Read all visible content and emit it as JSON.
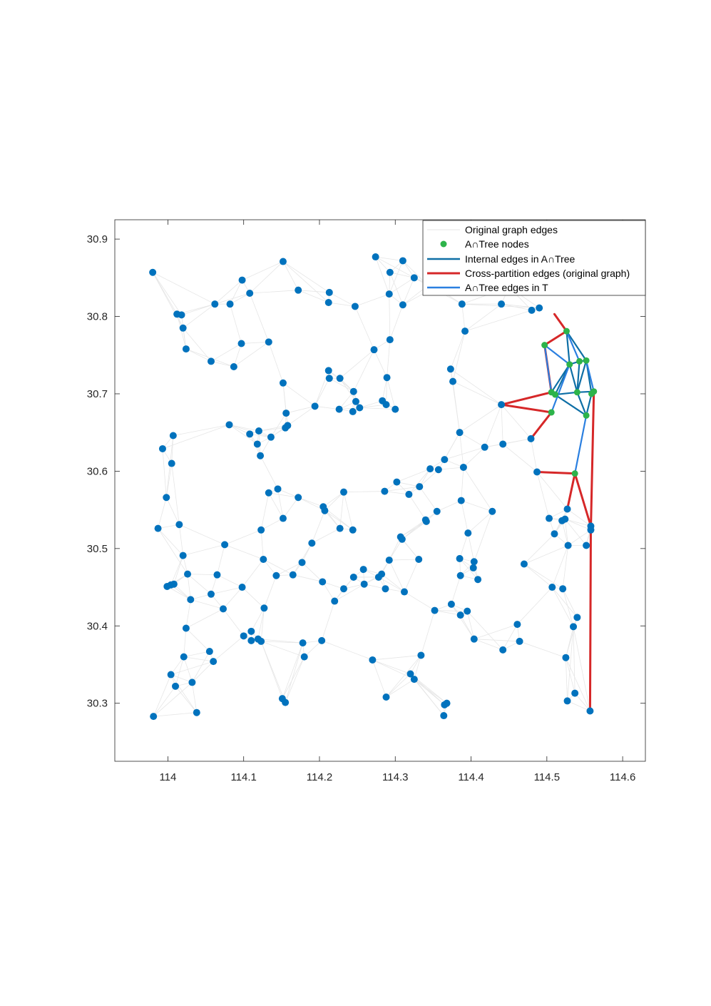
{
  "chart_data": {
    "type": "scatter",
    "xlim": [
      113.93,
      114.63
    ],
    "ylim": [
      30.225,
      30.925
    ],
    "xticks": [
      114,
      114.1,
      114.2,
      114.3,
      114.4,
      114.5,
      114.6
    ],
    "yticks": [
      30.3,
      30.4,
      30.5,
      30.6,
      30.7,
      30.8,
      30.9
    ],
    "xtick_labels": [
      "114",
      "114.1",
      "114.2",
      "114.3",
      "114.4",
      "114.5",
      "114.6"
    ],
    "ytick_labels": [
      "30.3",
      "30.4",
      "30.5",
      "30.6",
      "30.7",
      "30.8",
      "30.9"
    ],
    "legend": {
      "location": "top-right",
      "entries": [
        {
          "label": "Original graph edges",
          "color": "#e6e6e6",
          "style": "line"
        },
        {
          "label": "A∩Tree nodes",
          "color": "#2db34a",
          "style": "marker"
        },
        {
          "label": "Internal edges in A∩Tree",
          "color": "#0e6fa6",
          "style": "line"
        },
        {
          "label": "Cross-partition edges (original graph)",
          "color": "#d62728",
          "style": "line"
        },
        {
          "label": "A∩Tree edges in T",
          "color": "#2a7fe0",
          "style": "line"
        }
      ]
    },
    "colors": {
      "graph_node": "#0072bd",
      "original_edge": "#e6e6e6",
      "atree_node": "#2db34a",
      "internal_edge": "#0e6fa6",
      "cross_edge": "#d62728",
      "tree_edge": "#2a7fe0"
    },
    "nodes": [
      [
        113.98,
        30.857
      ],
      [
        114.012,
        30.803
      ],
      [
        114.018,
        30.802
      ],
      [
        114.02,
        30.785
      ],
      [
        114.024,
        30.758
      ],
      [
        114.062,
        30.816
      ],
      [
        114.082,
        30.816
      ],
      [
        114.098,
        30.847
      ],
      [
        114.108,
        30.83
      ],
      [
        114.152,
        30.871
      ],
      [
        114.172,
        30.834
      ],
      [
        114.097,
        30.765
      ],
      [
        114.133,
        30.767
      ],
      [
        114.057,
        30.742
      ],
      [
        114.087,
        30.735
      ],
      [
        114.152,
        30.714
      ],
      [
        114.213,
        30.831
      ],
      [
        114.212,
        30.818
      ],
      [
        114.247,
        30.813
      ],
      [
        114.274,
        30.877
      ],
      [
        114.293,
        30.857
      ],
      [
        114.292,
        30.829
      ],
      [
        114.31,
        30.872
      ],
      [
        114.31,
        30.815
      ],
      [
        114.325,
        30.85
      ],
      [
        114.343,
        30.84
      ],
      [
        114.353,
        30.838
      ],
      [
        114.388,
        30.816
      ],
      [
        114.44,
        30.816
      ],
      [
        114.45,
        30.838
      ],
      [
        114.48,
        30.808
      ],
      [
        114.49,
        30.811
      ],
      [
        114.392,
        30.781
      ],
      [
        114.293,
        30.77
      ],
      [
        114.272,
        30.757
      ],
      [
        114.212,
        30.73
      ],
      [
        114.213,
        30.72
      ],
      [
        114.227,
        30.72
      ],
      [
        114.245,
        30.703
      ],
      [
        114.248,
        30.69
      ],
      [
        114.253,
        30.682
      ],
      [
        114.244,
        30.677
      ],
      [
        114.226,
        30.68
      ],
      [
        114.194,
        30.684
      ],
      [
        114.156,
        30.675
      ],
      [
        114.158,
        30.659
      ],
      [
        114.155,
        30.656
      ],
      [
        114.289,
        30.721
      ],
      [
        114.283,
        30.691
      ],
      [
        114.288,
        30.686
      ],
      [
        114.3,
        30.68
      ],
      [
        114.373,
        30.732
      ],
      [
        114.376,
        30.716
      ],
      [
        114.081,
        30.66
      ],
      [
        114.108,
        30.648
      ],
      [
        114.12,
        30.652
      ],
      [
        114.136,
        30.644
      ],
      [
        114.118,
        30.635
      ],
      [
        114.122,
        30.62
      ],
      [
        114.007,
        30.646
      ],
      [
        113.993,
        30.629
      ],
      [
        114.005,
        30.61
      ],
      [
        114.385,
        30.65
      ],
      [
        114.365,
        30.615
      ],
      [
        114.346,
        30.603
      ],
      [
        114.357,
        30.602
      ],
      [
        114.39,
        30.605
      ],
      [
        114.418,
        30.631
      ],
      [
        114.442,
        30.635
      ],
      [
        114.479,
        30.642
      ],
      [
        114.44,
        30.686
      ],
      [
        113.998,
        30.566
      ],
      [
        114.133,
        30.572
      ],
      [
        114.145,
        30.577
      ],
      [
        114.172,
        30.566
      ],
      [
        114.232,
        30.573
      ],
      [
        114.286,
        30.574
      ],
      [
        114.302,
        30.586
      ],
      [
        114.318,
        30.57
      ],
      [
        114.332,
        30.58
      ],
      [
        114.205,
        30.554
      ],
      [
        114.207,
        30.549
      ],
      [
        114.355,
        30.548
      ],
      [
        114.387,
        30.562
      ],
      [
        114.428,
        30.548
      ],
      [
        114.487,
        30.599
      ],
      [
        114.503,
        30.539
      ],
      [
        114.52,
        30.536
      ],
      [
        114.524,
        30.538
      ],
      [
        114.527,
        30.551
      ],
      [
        113.987,
        30.526
      ],
      [
        114.015,
        30.531
      ],
      [
        114.123,
        30.524
      ],
      [
        114.152,
        30.539
      ],
      [
        114.227,
        30.526
      ],
      [
        114.244,
        30.524
      ],
      [
        114.307,
        30.515
      ],
      [
        114.309,
        30.512
      ],
      [
        114.34,
        30.537
      ],
      [
        114.341,
        30.535
      ],
      [
        114.396,
        30.52
      ],
      [
        114.51,
        30.519
      ],
      [
        114.528,
        30.504
      ],
      [
        114.552,
        30.504
      ],
      [
        114.02,
        30.491
      ],
      [
        114.075,
        30.505
      ],
      [
        114.126,
        30.486
      ],
      [
        114.177,
        30.482
      ],
      [
        114.19,
        30.507
      ],
      [
        114.245,
        30.463
      ],
      [
        114.258,
        30.473
      ],
      [
        114.278,
        30.463
      ],
      [
        114.282,
        30.467
      ],
      [
        114.292,
        30.485
      ],
      [
        114.331,
        30.486
      ],
      [
        114.385,
        30.487
      ],
      [
        114.404,
        30.483
      ],
      [
        114.403,
        30.475
      ],
      [
        114.47,
        30.48
      ],
      [
        113.999,
        30.451
      ],
      [
        114.004,
        30.453
      ],
      [
        114.008,
        30.454
      ],
      [
        114.026,
        30.467
      ],
      [
        114.065,
        30.466
      ],
      [
        114.03,
        30.434
      ],
      [
        114.057,
        30.441
      ],
      [
        114.098,
        30.45
      ],
      [
        114.143,
        30.465
      ],
      [
        114.165,
        30.466
      ],
      [
        114.204,
        30.457
      ],
      [
        114.232,
        30.448
      ],
      [
        114.259,
        30.454
      ],
      [
        114.287,
        30.448
      ],
      [
        114.312,
        30.444
      ],
      [
        114.386,
        30.465
      ],
      [
        114.409,
        30.46
      ],
      [
        114.507,
        30.45
      ],
      [
        114.521,
        30.448
      ],
      [
        114.22,
        30.432
      ],
      [
        114.073,
        30.422
      ],
      [
        114.127,
        30.423
      ],
      [
        114.352,
        30.42
      ],
      [
        114.374,
        30.428
      ],
      [
        114.386,
        30.414
      ],
      [
        114.395,
        30.419
      ],
      [
        114.54,
        30.411
      ],
      [
        114.024,
        30.397
      ],
      [
        114.461,
        30.402
      ],
      [
        114.535,
        30.399
      ],
      [
        114.11,
        30.393
      ],
      [
        114.1,
        30.387
      ],
      [
        114.11,
        30.381
      ],
      [
        114.119,
        30.383
      ],
      [
        114.123,
        30.38
      ],
      [
        114.178,
        30.378
      ],
      [
        114.203,
        30.381
      ],
      [
        114.404,
        30.383
      ],
      [
        114.464,
        30.38
      ],
      [
        114.442,
        30.369
      ],
      [
        114.055,
        30.367
      ],
      [
        114.06,
        30.354
      ],
      [
        114.021,
        30.36
      ],
      [
        114.18,
        30.36
      ],
      [
        114.27,
        30.356
      ],
      [
        114.334,
        30.362
      ],
      [
        114.525,
        30.359
      ],
      [
        114.004,
        30.337
      ],
      [
        114.01,
        30.322
      ],
      [
        114.032,
        30.327
      ],
      [
        114.32,
        30.338
      ],
      [
        114.325,
        30.331
      ],
      [
        114.151,
        30.306
      ],
      [
        114.155,
        30.301
      ],
      [
        114.288,
        30.308
      ],
      [
        114.537,
        30.313
      ],
      [
        113.981,
        30.283
      ],
      [
        114.038,
        30.288
      ],
      [
        114.364,
        30.284
      ],
      [
        114.365,
        30.298
      ],
      [
        114.368,
        30.3
      ],
      [
        114.527,
        30.303
      ],
      [
        114.557,
        30.29
      ],
      [
        114.558,
        30.524
      ],
      [
        114.558,
        30.529
      ]
    ],
    "atree_nodes": [
      [
        114.526,
        30.781
      ],
      [
        114.497,
        30.763
      ],
      [
        114.53,
        30.738
      ],
      [
        114.543,
        30.742
      ],
      [
        114.552,
        30.743
      ],
      [
        114.506,
        30.702
      ],
      [
        114.511,
        30.699
      ],
      [
        114.54,
        30.702
      ],
      [
        114.559,
        30.7
      ],
      [
        114.562,
        30.703
      ],
      [
        114.506,
        30.676
      ],
      [
        114.552,
        30.672
      ],
      [
        114.537,
        30.597
      ]
    ],
    "internal_edges": [
      [
        [
          114.526,
          30.781
        ],
        [
          114.53,
          30.738
        ]
      ],
      [
        [
          114.526,
          30.781
        ],
        [
          114.552,
          30.743
        ]
      ],
      [
        [
          114.53,
          30.738
        ],
        [
          114.543,
          30.742
        ]
      ],
      [
        [
          114.543,
          30.742
        ],
        [
          114.552,
          30.743
        ]
      ],
      [
        [
          114.53,
          30.738
        ],
        [
          114.506,
          30.702
        ]
      ],
      [
        [
          114.53,
          30.738
        ],
        [
          114.54,
          30.702
        ]
      ],
      [
        [
          114.543,
          30.742
        ],
        [
          114.54,
          30.702
        ]
      ],
      [
        [
          114.552,
          30.743
        ],
        [
          114.559,
          30.7
        ]
      ],
      [
        [
          114.552,
          30.743
        ],
        [
          114.54,
          30.702
        ]
      ],
      [
        [
          114.54,
          30.702
        ],
        [
          114.562,
          30.703
        ]
      ],
      [
        [
          114.511,
          30.699
        ],
        [
          114.54,
          30.702
        ]
      ],
      [
        [
          114.506,
          30.702
        ],
        [
          114.511,
          30.699
        ]
      ],
      [
        [
          114.506,
          30.702
        ],
        [
          114.552,
          30.672
        ]
      ],
      [
        [
          114.54,
          30.702
        ],
        [
          114.552,
          30.672
        ]
      ],
      [
        [
          114.559,
          30.7
        ],
        [
          114.552,
          30.672
        ]
      ],
      [
        [
          114.53,
          30.738
        ],
        [
          114.511,
          30.699
        ]
      ]
    ],
    "tree_edges": [
      [
        [
          114.526,
          30.781
        ],
        [
          114.543,
          30.742
        ]
      ],
      [
        [
          114.497,
          30.763
        ],
        [
          114.53,
          30.738
        ]
      ],
      [
        [
          114.552,
          30.743
        ],
        [
          114.562,
          30.703
        ]
      ],
      [
        [
          114.506,
          30.676
        ],
        [
          114.53,
          30.738
        ]
      ],
      [
        [
          114.552,
          30.672
        ],
        [
          114.537,
          30.597
        ]
      ],
      [
        [
          114.497,
          30.763
        ],
        [
          114.506,
          30.702
        ]
      ]
    ],
    "cross_edges": [
      [
        [
          114.51,
          30.803
        ],
        [
          114.526,
          30.781
        ]
      ],
      [
        [
          114.497,
          30.763
        ],
        [
          114.526,
          30.781
        ]
      ],
      [
        [
          114.497,
          30.763
        ],
        [
          114.506,
          30.702
        ]
      ],
      [
        [
          114.44,
          30.686
        ],
        [
          114.506,
          30.702
        ]
      ],
      [
        [
          114.44,
          30.686
        ],
        [
          114.506,
          30.676
        ]
      ],
      [
        [
          114.479,
          30.642
        ],
        [
          114.506,
          30.676
        ]
      ],
      [
        [
          114.487,
          30.599
        ],
        [
          114.537,
          30.597
        ]
      ],
      [
        [
          114.537,
          30.597
        ],
        [
          114.527,
          30.551
        ]
      ],
      [
        [
          114.537,
          30.597
        ],
        [
          114.558,
          30.529
        ]
      ],
      [
        [
          114.562,
          30.703
        ],
        [
          114.558,
          30.524
        ]
      ],
      [
        [
          114.558,
          30.524
        ],
        [
          114.557,
          30.29
        ]
      ]
    ]
  }
}
